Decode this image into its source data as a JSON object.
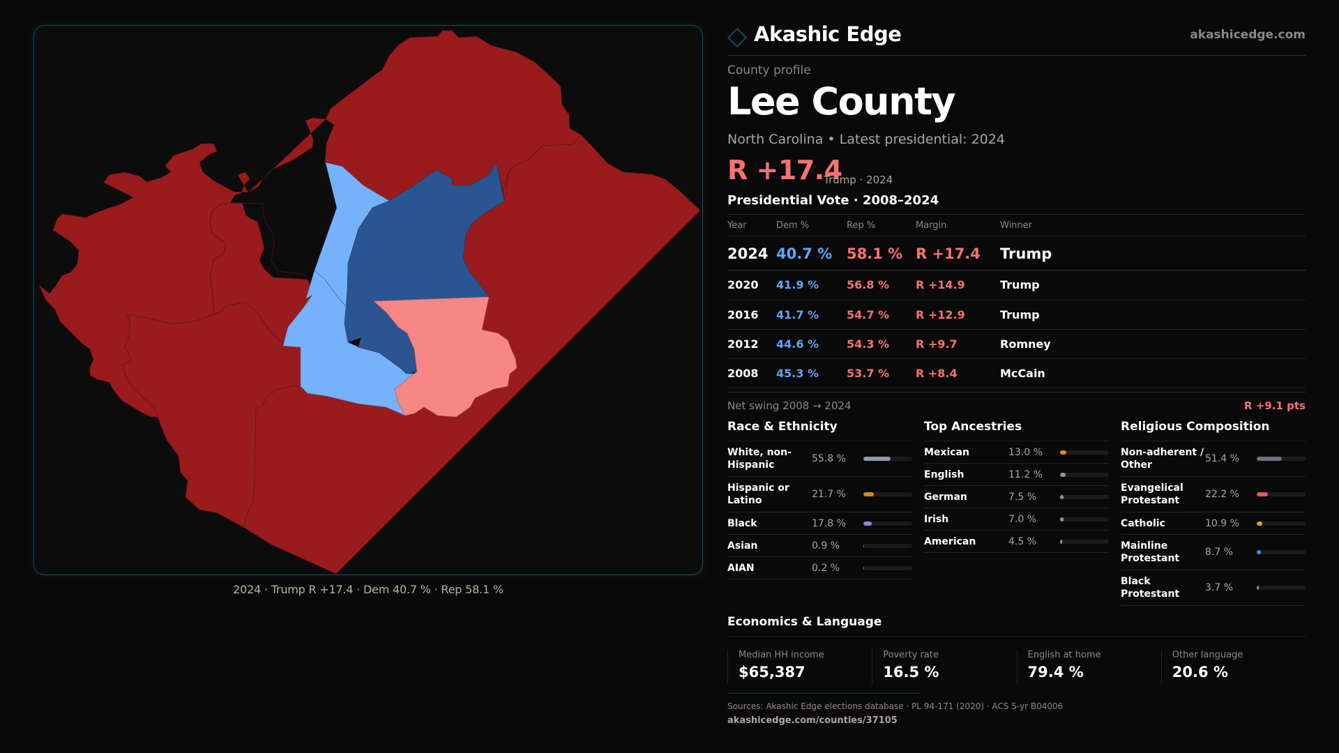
{
  "brand": {
    "name": "Akashic Edge",
    "url": "akashicedge.com",
    "logo_icon": "diamond-outline-icon"
  },
  "profile": {
    "eyebrow": "County profile",
    "title": "Lee County",
    "subtitle": "North Carolina • Latest presidential: 2024",
    "headline_margin": "R +17.4",
    "headline_note": "Trump · 2024"
  },
  "colors": {
    "rep_safe": "#991b1e",
    "rep_lean": "#f78787",
    "dem_safe": "#2a5592",
    "dem_lean": "#76b1fb",
    "accent": "#14505c",
    "dem_text": "#60a5fa",
    "rep_text": "#f87171"
  },
  "map": {
    "caption": "2024 · Trump R +17.4 · Dem 40.7 % · Rep 58.1 %",
    "precincts": [
      {
        "id": "north",
        "lean": "rep_safe"
      },
      {
        "id": "west",
        "lean": "rep_safe"
      },
      {
        "id": "southwest",
        "lean": "rep_safe"
      },
      {
        "id": "south",
        "lean": "rep_safe"
      },
      {
        "id": "east",
        "lean": "rep_safe"
      },
      {
        "id": "central-west",
        "lean": "dem_lean"
      },
      {
        "id": "central",
        "lean": "dem_safe"
      },
      {
        "id": "central-south",
        "lean": "rep_lean"
      }
    ]
  },
  "presidential": {
    "title": "Presidential Vote · 2008–2024",
    "headers": {
      "year": "Year",
      "dem": "Dem %",
      "rep": "Rep %",
      "margin": "Margin",
      "winner": "Winner"
    },
    "rows": [
      {
        "year": "2024",
        "dem": "40.7 %",
        "rep": "58.1 %",
        "margin": "R +17.4",
        "winner": "Trump"
      },
      {
        "year": "2020",
        "dem": "41.9 %",
        "rep": "56.8 %",
        "margin": "R +14.9",
        "winner": "Trump"
      },
      {
        "year": "2016",
        "dem": "41.7 %",
        "rep": "54.7 %",
        "margin": "R +12.9",
        "winner": "Trump"
      },
      {
        "year": "2012",
        "dem": "44.6 %",
        "rep": "54.3 %",
        "margin": "R +9.7",
        "winner": "Romney"
      },
      {
        "year": "2008",
        "dem": "45.3 %",
        "rep": "53.7 %",
        "margin": "R +8.4",
        "winner": "McCain"
      }
    ],
    "swing_label": "Net swing 2008 → 2024",
    "swing_value": "R +9.1 pts"
  },
  "race": {
    "title": "Race & Ethnicity",
    "items": [
      {
        "label": "White, non-Hispanic",
        "value": "55.8 %",
        "pct": 55.8,
        "color": "#8e97a8"
      },
      {
        "label": "Hispanic or Latino",
        "value": "21.7 %",
        "pct": 21.7,
        "color": "#d98d0f"
      },
      {
        "label": "Black",
        "value": "17.8 %",
        "pct": 17.8,
        "color": "#9c7ee0"
      },
      {
        "label": "Asian",
        "value": "0.9 %",
        "pct": 0.9,
        "color": "#2fb38a"
      },
      {
        "label": "AIAN",
        "value": "0.2 %",
        "pct": 0.2,
        "color": "#8f8782"
      }
    ]
  },
  "ancestry": {
    "title": "Top Ancestries",
    "items": [
      {
        "label": "Mexican",
        "value": "13.0 %",
        "pct": 13.0,
        "color": "#d98d0f"
      },
      {
        "label": "English",
        "value": "11.2 %",
        "pct": 11.2,
        "color": "#8e97a8"
      },
      {
        "label": "German",
        "value": "7.5 %",
        "pct": 7.5,
        "color": "#8e97a8"
      },
      {
        "label": "Irish",
        "value": "7.0 %",
        "pct": 7.0,
        "color": "#8e97a8"
      },
      {
        "label": "American",
        "value": "4.5 %",
        "pct": 4.5,
        "color": "#8e97a8"
      }
    ]
  },
  "religion": {
    "title": "Religious Composition",
    "items": [
      {
        "label": "Non-adherent / Other",
        "value": "51.4 %",
        "pct": 51.4,
        "color": "#6b7280"
      },
      {
        "label": "Evangelical Protestant",
        "value": "22.2 %",
        "pct": 22.2,
        "color": "#e05a5f"
      },
      {
        "label": "Catholic",
        "value": "10.9 %",
        "pct": 10.9,
        "color": "#d9a21c"
      },
      {
        "label": "Mainline Protestant",
        "value": "8.7 %",
        "pct": 8.7,
        "color": "#4a8fe0"
      },
      {
        "label": "Black Protestant",
        "value": "3.7 %",
        "pct": 3.7,
        "color": "#9c7ee0"
      }
    ]
  },
  "economics": {
    "title": "Economics & Language",
    "cards": [
      {
        "label": "Median HH income",
        "value": "$65,387"
      },
      {
        "label": "Poverty rate",
        "value": "16.5 %"
      },
      {
        "label": "English at home",
        "value": "79.4 %"
      },
      {
        "label": "Other language",
        "value": "20.6 %"
      }
    ]
  },
  "footer": {
    "sources": "Sources: Akashic Edge elections database · PL 94-171 (2020) · ACS 5-yr B04006",
    "url": "akashicedge.com/counties/37105"
  }
}
